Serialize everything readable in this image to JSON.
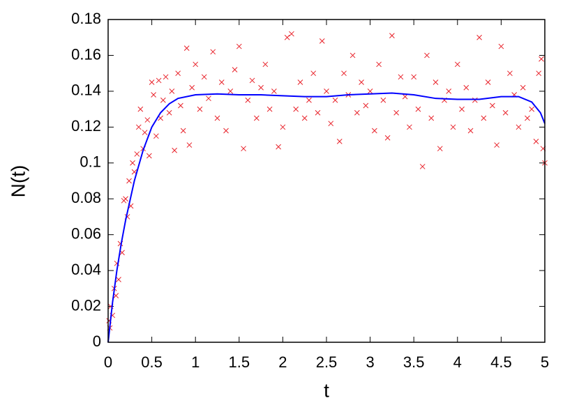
{
  "chart_data": {
    "type": "scatter",
    "x_label": "t",
    "y_label": "N(t)",
    "xlim": [
      0,
      5
    ],
    "ylim": [
      0,
      0.18
    ],
    "xticks": [
      0,
      0.5,
      1,
      1.5,
      2,
      2.5,
      3,
      3.5,
      4,
      4.5,
      5
    ],
    "yticks": [
      0,
      0.02,
      0.04,
      0.06,
      0.08,
      0.1,
      0.12,
      0.14,
      0.16,
      0.18
    ],
    "grid": false,
    "series": [
      {
        "color": "#e8222a",
        "marker": "x",
        "x": [
          0.01,
          0.02,
          0.03,
          0.05,
          0.07,
          0.09,
          0.1,
          0.12,
          0.14,
          0.16,
          0.18,
          0.2,
          0.22,
          0.24,
          0.26,
          0.28,
          0.3,
          0.33,
          0.35,
          0.37,
          0.4,
          0.42,
          0.45,
          0.47,
          0.5,
          0.52,
          0.55,
          0.58,
          0.6,
          0.63,
          0.66,
          0.7,
          0.73,
          0.76,
          0.8,
          0.83,
          0.86,
          0.9,
          0.93,
          0.96,
          1.0,
          1.05,
          1.1,
          1.15,
          1.2,
          1.25,
          1.3,
          1.35,
          1.4,
          1.45,
          1.5,
          1.55,
          1.6,
          1.65,
          1.7,
          1.75,
          1.8,
          1.85,
          1.9,
          1.95,
          2.0,
          2.05,
          2.1,
          2.15,
          2.2,
          2.25,
          2.3,
          2.35,
          2.4,
          2.45,
          2.5,
          2.55,
          2.6,
          2.65,
          2.7,
          2.75,
          2.8,
          2.85,
          2.9,
          2.95,
          3.0,
          3.05,
          3.1,
          3.15,
          3.2,
          3.25,
          3.3,
          3.35,
          3.4,
          3.45,
          3.5,
          3.55,
          3.6,
          3.65,
          3.7,
          3.75,
          3.8,
          3.85,
          3.9,
          3.95,
          4.0,
          4.05,
          4.1,
          4.15,
          4.2,
          4.25,
          4.3,
          4.35,
          4.4,
          4.45,
          4.5,
          4.55,
          4.6,
          4.65,
          4.7,
          4.75,
          4.8,
          4.85,
          4.9,
          4.93,
          4.96,
          4.98,
          5.0
        ],
        "values": [
          0.012,
          0.008,
          0.02,
          0.015,
          0.03,
          0.026,
          0.044,
          0.035,
          0.055,
          0.05,
          0.079,
          0.08,
          0.07,
          0.09,
          0.076,
          0.1,
          0.095,
          0.105,
          0.12,
          0.13,
          0.108,
          0.117,
          0.124,
          0.104,
          0.145,
          0.138,
          0.115,
          0.146,
          0.125,
          0.135,
          0.148,
          0.128,
          0.14,
          0.107,
          0.15,
          0.132,
          0.118,
          0.164,
          0.11,
          0.142,
          0.155,
          0.13,
          0.148,
          0.136,
          0.162,
          0.125,
          0.145,
          0.118,
          0.14,
          0.152,
          0.165,
          0.108,
          0.135,
          0.146,
          0.125,
          0.142,
          0.155,
          0.13,
          0.14,
          0.109,
          0.12,
          0.17,
          0.172,
          0.13,
          0.145,
          0.125,
          0.135,
          0.15,
          0.128,
          0.168,
          0.14,
          0.122,
          0.135,
          0.112,
          0.15,
          0.138,
          0.16,
          0.128,
          0.145,
          0.132,
          0.14,
          0.118,
          0.155,
          0.135,
          0.114,
          0.171,
          0.128,
          0.148,
          0.137,
          0.12,
          0.148,
          0.13,
          0.098,
          0.16,
          0.125,
          0.145,
          0.108,
          0.135,
          0.14,
          0.12,
          0.155,
          0.13,
          0.142,
          0.118,
          0.135,
          0.17,
          0.125,
          0.145,
          0.132,
          0.11,
          0.165,
          0.128,
          0.15,
          0.138,
          0.12,
          0.142,
          0.125,
          0.13,
          0.112,
          0.15,
          0.158,
          0.108,
          0.1
        ]
      },
      {
        "color": "#0000ff",
        "line": true,
        "x": [
          0,
          0.05,
          0.1,
          0.15,
          0.2,
          0.3,
          0.4,
          0.5,
          0.6,
          0.7,
          0.8,
          1,
          1.25,
          1.5,
          1.75,
          2,
          2.25,
          2.5,
          2.75,
          3,
          3.25,
          3.5,
          3.75,
          4,
          4.25,
          4.5,
          4.7,
          4.85,
          4.95,
          5
        ],
        "values": [
          0,
          0.022,
          0.04,
          0.055,
          0.068,
          0.09,
          0.107,
          0.12,
          0.128,
          0.133,
          0.136,
          0.138,
          0.1385,
          0.138,
          0.138,
          0.1375,
          0.137,
          0.137,
          0.138,
          0.1385,
          0.139,
          0.138,
          0.136,
          0.1355,
          0.1355,
          0.137,
          0.137,
          0.134,
          0.128,
          0.122
        ]
      }
    ]
  }
}
